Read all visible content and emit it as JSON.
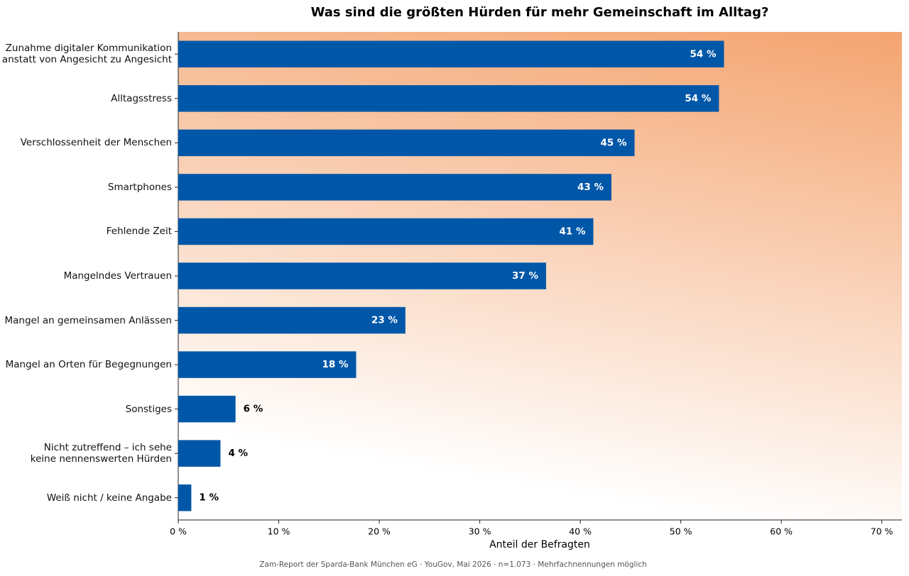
{
  "chart_data": {
    "type": "hbar",
    "title": "Was sind die größten Hürden für mehr Gemeinschaft im Alltag?",
    "categories": [
      "Zunahme digitaler Kommunikation\nanstatt von Angesicht zu Angesicht",
      "Alltagsstress",
      "Verschlossenheit der Menschen",
      "Smartphones",
      "Fehlende Zeit",
      "Mangelndes Vertrauen",
      "Mangel an gemeinsamen Anlässen",
      "Mangel an Orten für Begegnungen",
      "Sonstiges",
      "Nicht zutreffend – ich sehe\nkeine nennenswerten Hürden",
      "Weiß nicht / keine Angabe"
    ],
    "values": [
      54.3,
      53.8,
      45.4,
      43.1,
      41.3,
      36.6,
      22.6,
      17.7,
      5.7,
      4.2,
      1.3
    ],
    "value_labels": [
      "54 %",
      "54 %",
      "45 %",
      "43 %",
      "41 %",
      "37 %",
      "23 %",
      "18 %",
      "6 %",
      "4 %",
      "1 %"
    ],
    "color": "#0057a8",
    "xlim": [
      0,
      72
    ],
    "xticks": [
      {
        "value": 0,
        "label": "0 %"
      },
      {
        "value": 10,
        "label": "10 %"
      },
      {
        "value": 20,
        "label": "20 %"
      },
      {
        "value": 30,
        "label": "30 %"
      },
      {
        "value": 40,
        "label": "40 %"
      },
      {
        "value": 50,
        "label": "50 %"
      },
      {
        "value": 60,
        "label": "60 %"
      },
      {
        "value": 70,
        "label": "70 %"
      }
    ],
    "xlabel": "Anteil der Befragten",
    "source": "Zam-Report der Sparda-Bank München eG · YouGov, Mai 2026 · n=1.073 · Mehrfachnennungen möglich"
  }
}
